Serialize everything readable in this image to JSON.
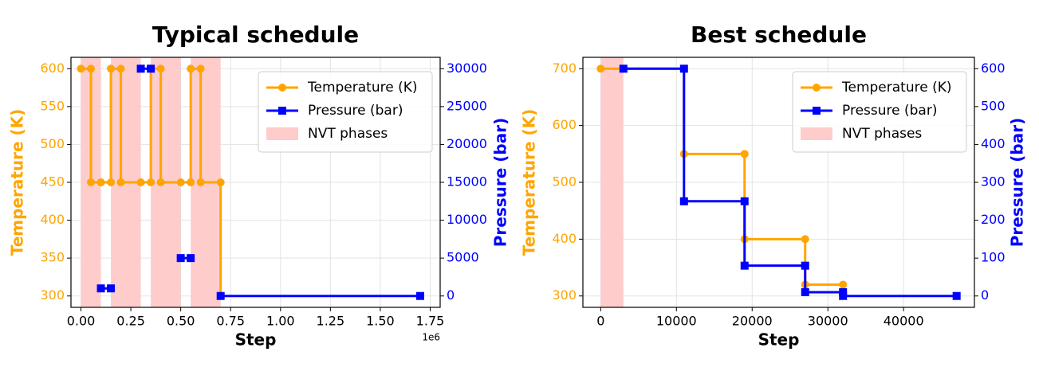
{
  "chart_data": [
    {
      "type": "line",
      "title": "Typical schedule",
      "xlabel": "Step",
      "ylabel": "Temperature (K)",
      "y2label": "Pressure (bar)",
      "x_offset_label": "1e6",
      "xlim": [
        -50000,
        1800000
      ],
      "xticks": [
        {
          "value": 0,
          "label": "0.00"
        },
        {
          "value": 250000,
          "label": "0.25"
        },
        {
          "value": 500000,
          "label": "0.50"
        },
        {
          "value": 750000,
          "label": "0.75"
        },
        {
          "value": 1000000,
          "label": "1.00"
        },
        {
          "value": 1250000,
          "label": "1.25"
        },
        {
          "value": 1500000,
          "label": "1.50"
        },
        {
          "value": 1750000,
          "label": "1.75"
        }
      ],
      "ylim": [
        285,
        615
      ],
      "yticks": [
        300,
        350,
        400,
        450,
        500,
        550,
        600
      ],
      "y2lim": [
        -1500,
        31500
      ],
      "y2ticks": [
        0,
        5000,
        10000,
        15000,
        20000,
        25000,
        30000
      ],
      "grid": true,
      "legend": "upper right",
      "series": [
        {
          "name": "Temperature (K)",
          "color": "#FFA500",
          "marker": "circle",
          "x": [
            0,
            50000,
            50000,
            100000,
            150000,
            150000,
            200000,
            200000,
            300000,
            350000,
            350000,
            400000,
            400000,
            500000,
            550000,
            550000,
            600000,
            600000,
            700000,
            700000
          ],
          "values": [
            600,
            600,
            450,
            450,
            450,
            600,
            600,
            450,
            450,
            450,
            600,
            600,
            450,
            450,
            450,
            600,
            600,
            450,
            450,
            300
          ]
        },
        {
          "name": "Pressure (bar)",
          "color": "#0000FF",
          "marker": "square",
          "axis": "y2",
          "x": [
            100000,
            150000,
            150000,
            300000,
            350000,
            350000,
            500000,
            550000,
            550000,
            700000,
            1700000
          ],
          "values": [
            1000,
            1000,
            null,
            30000,
            30000,
            null,
            5000,
            5000,
            null,
            0,
            0
          ]
        }
      ],
      "spans": {
        "name": "NVT phases",
        "color": "#FFCCCC",
        "ranges": [
          [
            0,
            100000
          ],
          [
            150000,
            300000
          ],
          [
            350000,
            500000
          ],
          [
            550000,
            700000
          ]
        ]
      }
    },
    {
      "type": "line",
      "title": "Best schedule",
      "xlabel": "Step",
      "ylabel": "Temperature (K)",
      "y2label": "Pressure (bar)",
      "xlim": [
        -2350,
        49350
      ],
      "xticks": [
        0,
        10000,
        20000,
        30000,
        40000
      ],
      "ylim": [
        280,
        720
      ],
      "yticks": [
        300,
        400,
        500,
        600,
        700
      ],
      "y2lim": [
        -30,
        630
      ],
      "y2ticks": [
        0,
        100,
        200,
        300,
        400,
        500,
        600
      ],
      "grid": true,
      "legend": "upper right",
      "series": [
        {
          "name": "Temperature (K)",
          "color": "#FFA500",
          "marker": "circle",
          "x": [
            0,
            3000,
            11000,
            11000,
            19000,
            19000,
            27000,
            27000,
            32000
          ],
          "values": [
            700,
            700,
            700,
            550,
            550,
            400,
            400,
            320,
            320
          ]
        },
        {
          "name": "Pressure (bar)",
          "color": "#0000FF",
          "marker": "square",
          "axis": "y2",
          "x": [
            3000,
            11000,
            11000,
            19000,
            19000,
            27000,
            27000,
            32000,
            32000,
            47000
          ],
          "values": [
            600,
            600,
            250,
            250,
            80,
            80,
            10,
            10,
            0,
            0
          ]
        }
      ],
      "spans": {
        "name": "NVT phases",
        "color": "#FFCCCC",
        "ranges": [
          [
            0,
            3000
          ]
        ]
      }
    }
  ]
}
